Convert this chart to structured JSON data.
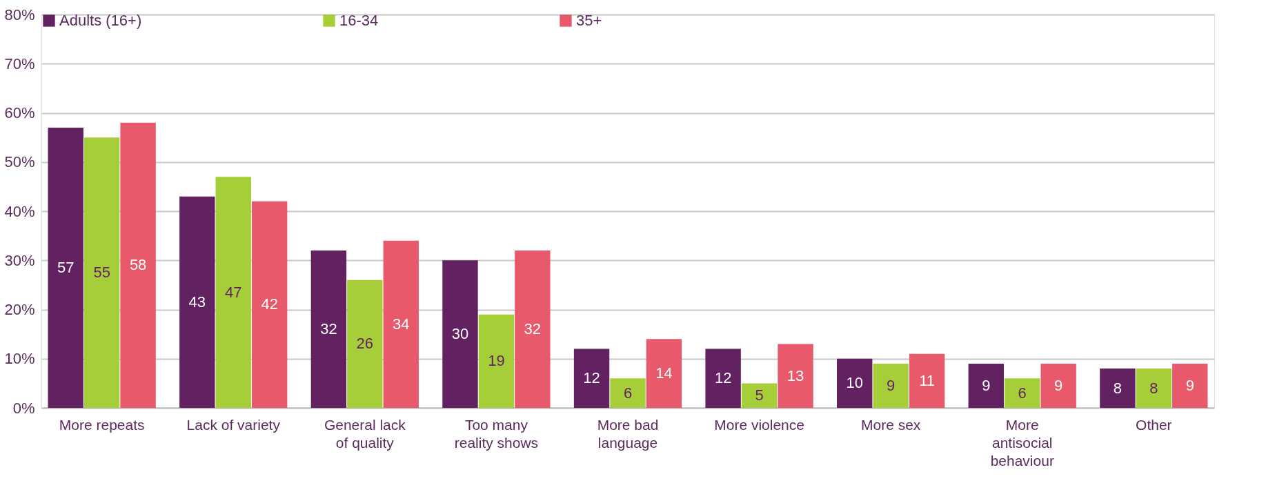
{
  "chart_data": {
    "type": "bar",
    "categories": [
      "More repeats",
      "Lack of variety",
      "General lack of quality",
      "Too many reality shows",
      "More bad language",
      "More violence",
      "More sex",
      "More antisocial behaviour",
      "Other"
    ],
    "series": [
      {
        "name": "Adults (16+)",
        "color": "#622262",
        "values": [
          57,
          43,
          32,
          30,
          12,
          12,
          10,
          9,
          8
        ]
      },
      {
        "name": "16-34",
        "color": "#a6ce39",
        "values": [
          55,
          47,
          26,
          19,
          6,
          5,
          9,
          6,
          8
        ]
      },
      {
        "name": "35+",
        "color": "#e85a6b",
        "values": [
          58,
          42,
          34,
          32,
          14,
          13,
          11,
          9,
          9
        ]
      }
    ],
    "ylim": [
      0,
      80
    ],
    "yticks": [
      {
        "value": 0,
        "label": "0%"
      },
      {
        "value": 10,
        "label": "10%"
      },
      {
        "value": 20,
        "label": "20%"
      },
      {
        "value": 30,
        "label": "30%"
      },
      {
        "value": 40,
        "label": "40%"
      },
      {
        "value": 50,
        "label": "50%"
      },
      {
        "value": 60,
        "label": "60%"
      },
      {
        "value": 70,
        "label": "70%"
      },
      {
        "value": 80,
        "label": "80%"
      }
    ],
    "grid": "y",
    "legend": "top",
    "data_labels": true
  }
}
